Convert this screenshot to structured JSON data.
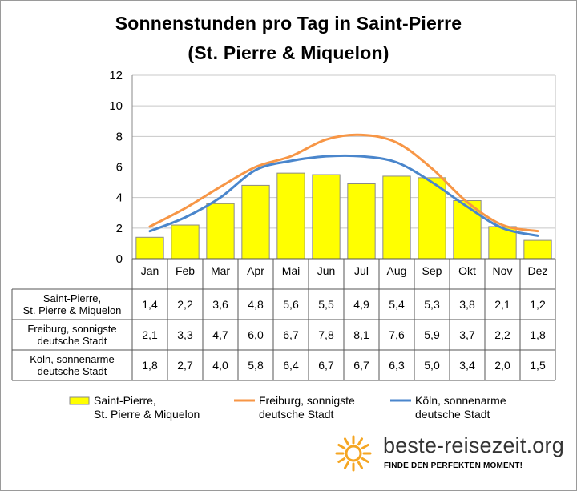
{
  "chart_data": {
    "type": "bar",
    "title_line1": "Sonnenstunden pro Tag in Saint-Pierre",
    "title_line2": "(St. Pierre & Miquelon)",
    "categories": [
      "Jan",
      "Feb",
      "Mar",
      "Apr",
      "Mai",
      "Jun",
      "Jul",
      "Aug",
      "Sep",
      "Okt",
      "Nov",
      "Dez"
    ],
    "ylim": [
      0,
      12
    ],
    "yticks": [
      "0",
      "2",
      "4",
      "6",
      "8",
      "10",
      "12"
    ],
    "grid": true,
    "legend_position": "bottom",
    "series": [
      {
        "name_lines": [
          "Saint-Pierre,",
          "St. Pierre & Miquelon"
        ],
        "type": "bar",
        "color": "#ffff00",
        "values": [
          1.4,
          2.2,
          3.6,
          4.8,
          5.6,
          5.5,
          4.9,
          5.4,
          5.3,
          3.8,
          2.1,
          1.2
        ],
        "labels": [
          "1,4",
          "2,2",
          "3,6",
          "4,8",
          "5,6",
          "5,5",
          "4,9",
          "5,4",
          "5,3",
          "3,8",
          "2,1",
          "1,2"
        ]
      },
      {
        "name_lines": [
          "Freiburg, sonnigste",
          "deutsche Stadt"
        ],
        "type": "line",
        "color": "#f79646",
        "values": [
          2.1,
          3.3,
          4.7,
          6.0,
          6.7,
          7.8,
          8.1,
          7.6,
          5.9,
          3.7,
          2.2,
          1.8
        ],
        "labels": [
          "2,1",
          "3,3",
          "4,7",
          "6,0",
          "6,7",
          "7,8",
          "8,1",
          "7,6",
          "5,9",
          "3,7",
          "2,2",
          "1,8"
        ]
      },
      {
        "name_lines": [
          "Köln, sonnenarme",
          "deutsche Stadt"
        ],
        "type": "line",
        "color": "#4a86cc",
        "values": [
          1.8,
          2.7,
          4.0,
          5.8,
          6.4,
          6.7,
          6.7,
          6.3,
          5.0,
          3.4,
          2.0,
          1.5
        ],
        "labels": [
          "1,8",
          "2,7",
          "4,0",
          "5,8",
          "6,4",
          "6,7",
          "6,7",
          "6,3",
          "5,0",
          "3,4",
          "2,0",
          "1,5"
        ]
      }
    ]
  },
  "table_rows": [
    {
      "lines": [
        "Saint-Pierre,",
        "St. Pierre & Miquelon"
      ]
    },
    {
      "lines": [
        "Freiburg, sonnigste",
        "deutsche Stadt"
      ]
    },
    {
      "lines": [
        "Köln, sonnenarme",
        "deutsche Stadt"
      ]
    }
  ],
  "branding": {
    "site": "beste-reisezeit.org",
    "slogan": "FINDE DEN PERFEKTEN MOMENT!",
    "sun_color": "#f5a623",
    "icon": "sun-icon"
  }
}
